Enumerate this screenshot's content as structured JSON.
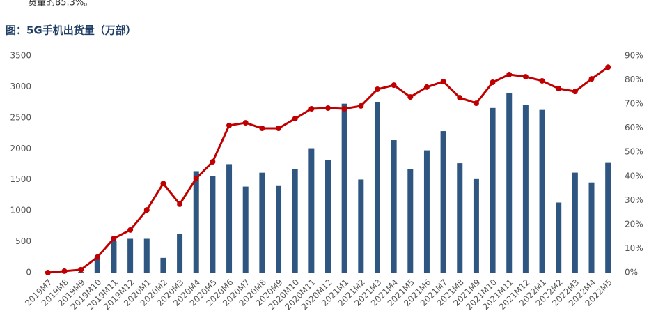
{
  "intro_text": "货量的85.3%。",
  "chart_data": {
    "type": "bar-line",
    "title": "图：5G手机出货量（万部）",
    "categories": [
      "2019M7",
      "2019M8",
      "2019M9",
      "2019M10",
      "2019M11",
      "2019M12",
      "2020M1",
      "2020M2",
      "2020M3",
      "2020M4",
      "2020M5",
      "2020M6",
      "2020M7",
      "2020M8",
      "2020M9",
      "2020M10",
      "2020M11",
      "2020M12",
      "2021M1",
      "2021M2",
      "2021M3",
      "2021M4",
      "2021M5",
      "2021M6",
      "2021M7",
      "2021M8",
      "2021M9",
      "2021M10",
      "2021M11",
      "2021M12",
      "2022M1",
      "2022M2",
      "2022M3",
      "2022M4",
      "2022M5"
    ],
    "series": [
      {
        "type": "bar",
        "color": "#2f5680",
        "values": [
          0,
          0,
          10,
          250,
          507,
          546,
          546,
          238,
          621,
          1638,
          1561,
          1751,
          1389,
          1613,
          1398,
          1673,
          2008,
          1815,
          2727,
          1503,
          2748,
          2138,
          1671,
          1974,
          2284,
          1766,
          1510,
          2658,
          2895,
          2711,
          2626,
          1131,
          1614,
          1455,
          1771
        ]
      },
      {
        "type": "line",
        "axis": "y2",
        "color": "#c00000",
        "values": [
          0,
          0.6,
          1.2,
          6.4,
          14.2,
          17.7,
          26.0,
          37.0,
          28.4,
          39.1,
          46.0,
          61.1,
          62.2,
          59.9,
          59.9,
          63.9,
          68.0,
          68.3,
          68.0,
          69.2,
          76.1,
          77.8,
          72.9,
          77.0,
          79.3,
          72.6,
          70.3,
          79.0,
          82.2,
          81.3,
          79.6,
          76.4,
          75.2,
          80.4,
          85.3
        ]
      }
    ],
    "ylim": [
      0,
      3500
    ],
    "yticks": [
      0,
      500,
      1000,
      1500,
      2000,
      2500,
      3000,
      3500
    ],
    "y2lim": [
      0,
      90
    ],
    "y2ticks": [
      {
        "value": 0,
        "label": "0%"
      },
      {
        "value": 10,
        "label": "10%"
      },
      {
        "value": 20,
        "label": "20%"
      },
      {
        "value": 30,
        "label": "30%"
      },
      {
        "value": 40,
        "label": "40%"
      },
      {
        "value": 50,
        "label": "50%"
      },
      {
        "value": 60,
        "label": "60%"
      },
      {
        "value": 70,
        "label": "70%"
      },
      {
        "value": 80,
        "label": "80%"
      },
      {
        "value": 90,
        "label": "90%"
      }
    ]
  }
}
